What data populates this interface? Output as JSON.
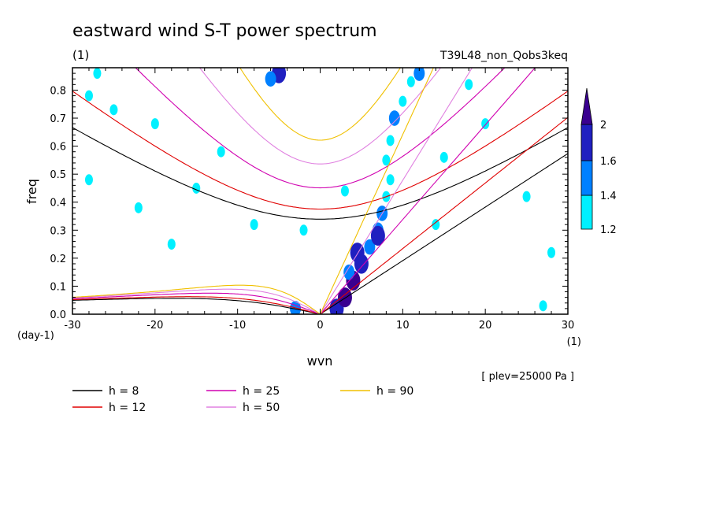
{
  "chart_data": {
    "type": "heatmap",
    "title": "eastward wind S-T power spectrum",
    "title_unit": "(1)",
    "run_label": "T39L48_non_Qobs3keq",
    "xlabel": "wvn",
    "ylabel": "freq",
    "x_unit": "(1)",
    "y_unit": "(day-1)",
    "plev_note": "[ plev=25000 Pa ]",
    "xlim": [
      -30,
      30
    ],
    "ylim": [
      0,
      0.88
    ],
    "x_ticks": [
      -30,
      -20,
      -10,
      0,
      10,
      20,
      30
    ],
    "x_tick_labels": [
      "-30",
      "-20",
      "-10",
      "0",
      "10",
      "20",
      "30"
    ],
    "y_ticks": [
      0,
      0.1,
      0.2,
      0.3,
      0.4,
      0.5,
      0.6,
      0.7,
      0.8
    ],
    "y_tick_labels": [
      "0.0",
      "0.1",
      "0.2",
      "0.3",
      "0.4",
      "0.5",
      "0.6",
      "0.7",
      "0.8"
    ],
    "colorbar": {
      "levels": [
        1.2,
        1.4,
        1.6,
        2
      ],
      "labels": [
        "1.2",
        "1.4",
        "1.6",
        "2"
      ],
      "colors": [
        "#00f0ff",
        "#0080ff",
        "#2020c0",
        "#3a0090"
      ]
    },
    "dispersion_curves": [
      {
        "name": "h =  8",
        "h": 8,
        "color": "#000000"
      },
      {
        "name": "h = 12",
        "h": 12,
        "color": "#e00000"
      },
      {
        "name": "h = 25",
        "h": 25,
        "color": "#d000b0"
      },
      {
        "name": "h = 50",
        "h": 50,
        "color": "#e080e0"
      },
      {
        "name": "h = 90",
        "h": 90,
        "color": "#f0c000"
      }
    ],
    "power_blobs": [
      {
        "x": 2.0,
        "y": 0.02,
        "level": 1.6
      },
      {
        "x": 3.0,
        "y": 0.06,
        "level": 2
      },
      {
        "x": 4.0,
        "y": 0.12,
        "level": 2
      },
      {
        "x": 5.0,
        "y": 0.18,
        "level": 1.6
      },
      {
        "x": 6.0,
        "y": 0.24,
        "level": 1.4
      },
      {
        "x": 4.5,
        "y": 0.22,
        "level": 1.6
      },
      {
        "x": 7.0,
        "y": 0.3,
        "level": 1.4
      },
      {
        "x": 7.5,
        "y": 0.36,
        "level": 1.4
      },
      {
        "x": 8.0,
        "y": 0.42,
        "level": 1.2
      },
      {
        "x": 8.5,
        "y": 0.48,
        "level": 1.2
      },
      {
        "x": 8.0,
        "y": 0.55,
        "level": 1.2
      },
      {
        "x": 8.5,
        "y": 0.62,
        "level": 1.2
      },
      {
        "x": 9.0,
        "y": 0.7,
        "level": 1.4
      },
      {
        "x": 10.0,
        "y": 0.76,
        "level": 1.2
      },
      {
        "x": 11.0,
        "y": 0.83,
        "level": 1.2
      },
      {
        "x": 12.0,
        "y": 0.86,
        "level": 1.4
      },
      {
        "x": 7.0,
        "y": 0.28,
        "level": 1.6
      },
      {
        "x": 3.5,
        "y": 0.15,
        "level": 1.4
      },
      {
        "x": -5.0,
        "y": 0.86,
        "level": 1.6
      },
      {
        "x": -6.0,
        "y": 0.84,
        "level": 1.4
      },
      {
        "x": -27.0,
        "y": 0.86,
        "level": 1.2
      },
      {
        "x": -25.0,
        "y": 0.73,
        "level": 1.2
      },
      {
        "x": -28.0,
        "y": 0.78,
        "level": 1.2
      },
      {
        "x": -20.0,
        "y": 0.68,
        "level": 1.2
      },
      {
        "x": -15.0,
        "y": 0.45,
        "level": 1.2
      },
      {
        "x": -12.0,
        "y": 0.58,
        "level": 1.2
      },
      {
        "x": -28.0,
        "y": 0.48,
        "level": 1.2
      },
      {
        "x": -22.0,
        "y": 0.38,
        "level": 1.2
      },
      {
        "x": -8.0,
        "y": 0.32,
        "level": 1.2
      },
      {
        "x": -2.0,
        "y": 0.3,
        "level": 1.2
      },
      {
        "x": 3.0,
        "y": 0.44,
        "level": 1.2
      },
      {
        "x": 15.0,
        "y": 0.56,
        "level": 1.2
      },
      {
        "x": 20.0,
        "y": 0.68,
        "level": 1.2
      },
      {
        "x": 18.0,
        "y": 0.82,
        "level": 1.2
      },
      {
        "x": 25.0,
        "y": 0.42,
        "level": 1.2
      },
      {
        "x": 28.0,
        "y": 0.22,
        "level": 1.2
      },
      {
        "x": 14.0,
        "y": 0.32,
        "level": 1.2
      },
      {
        "x": -3.0,
        "y": 0.02,
        "level": 1.4
      },
      {
        "x": -18.0,
        "y": 0.25,
        "level": 1.2
      },
      {
        "x": 27.0,
        "y": 0.03,
        "level": 1.2
      }
    ]
  }
}
